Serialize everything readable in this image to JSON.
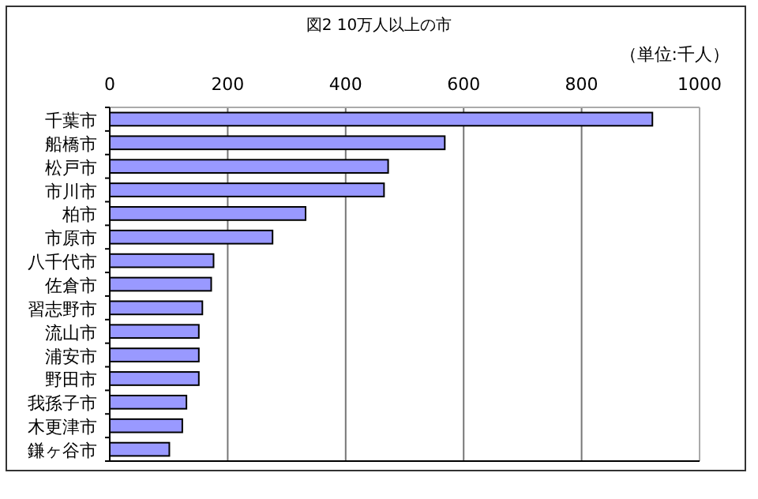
{
  "chart_data": {
    "type": "bar",
    "orientation": "horizontal",
    "title": "図2  10万人以上の市",
    "annotations": [
      "（単位:千人）"
    ],
    "categories": [
      "千葉市",
      "船橋市",
      "松戸市",
      "市川市",
      "柏市",
      "市原市",
      "八千代市",
      "佐倉市",
      "習志野市",
      "流山市",
      "浦安市",
      "野田市",
      "我孫子市",
      "木更津市",
      "鎌ヶ谷市"
    ],
    "values": [
      920,
      568,
      472,
      465,
      332,
      276,
      176,
      172,
      157,
      151,
      151,
      151,
      130,
      123,
      101
    ],
    "color": "#9999ff",
    "xlim": [
      0,
      1000
    ],
    "xticks": [
      0,
      200,
      400,
      600,
      800,
      1000
    ],
    "grid": "x"
  }
}
